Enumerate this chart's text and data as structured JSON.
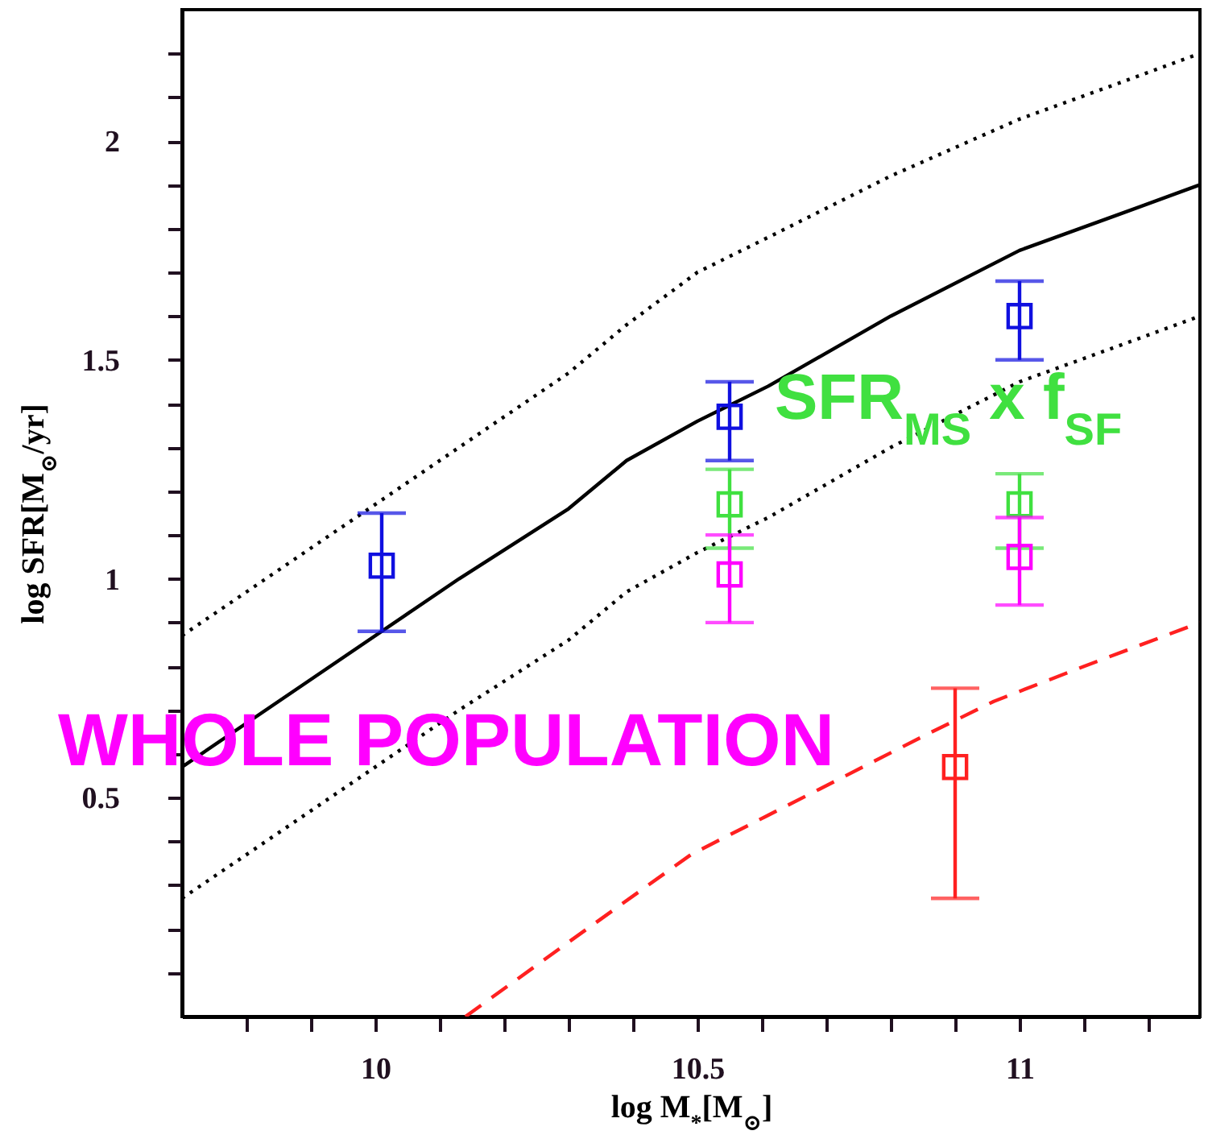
{
  "chart_data": {
    "type": "scatter",
    "xlabel": "log M$_{*}$[M$_{⊙}$]",
    "ylabel": "log SFR[M$_{⊙}$/yr]",
    "xlim": [
      9.7,
      11.28
    ],
    "ylim": [
      0,
      2.3
    ],
    "xticks": [
      {
        "value": 9.8,
        "label": null
      },
      {
        "value": 9.9,
        "label": null
      },
      10,
      {
        "value": 10.1,
        "label": null
      },
      {
        "value": 10.2,
        "label": null
      },
      {
        "value": 10.3,
        "label": null
      },
      {
        "value": 10.4,
        "label": null
      },
      10.5,
      {
        "value": 10.6,
        "label": null
      },
      {
        "value": 10.7,
        "label": null
      },
      {
        "value": 10.8,
        "label": null
      },
      {
        "value": 10.9,
        "label": null
      },
      11,
      {
        "value": 11.1,
        "label": null
      },
      {
        "value": 11.2,
        "label": null
      }
    ],
    "yticks": [
      {
        "value": 0.1,
        "label": null
      },
      {
        "value": 0.2,
        "label": null
      },
      {
        "value": 0.3,
        "label": null
      },
      {
        "value": 0.4,
        "label": null
      },
      0.5,
      {
        "value": 0.6,
        "label": null
      },
      {
        "value": 0.7,
        "label": null
      },
      {
        "value": 0.8,
        "label": null
      },
      {
        "value": 0.9,
        "label": null
      },
      1,
      {
        "value": 1.1,
        "label": null
      },
      {
        "value": 1.2,
        "label": null
      },
      {
        "value": 1.3,
        "label": null
      },
      {
        "value": 1.4,
        "label": null
      },
      1.5,
      {
        "value": 1.6,
        "label": null
      },
      {
        "value": 1.7,
        "label": null
      },
      {
        "value": 1.8,
        "label": null
      },
      {
        "value": 1.9,
        "label": null
      },
      2,
      {
        "value": 2.1,
        "label": null
      },
      {
        "value": 2.2,
        "label": null
      }
    ],
    "grid": false,
    "series": [
      {
        "type": "line",
        "color": "#000000",
        "line_style": "solid",
        "x": [
          9.7,
          9.9,
          10.13,
          10.3,
          10.39,
          10.5,
          10.61,
          10.8,
          11.0,
          11.15,
          11.28
        ],
        "values": [
          0.57,
          0.77,
          1.0,
          1.16,
          1.27,
          1.36,
          1.44,
          1.6,
          1.75,
          1.83,
          1.9
        ]
      },
      {
        "type": "line",
        "color": "#000000",
        "line_style": "dotted",
        "x": [
          9.7,
          9.9,
          10.13,
          10.3,
          10.39,
          10.5,
          10.61,
          10.8,
          11.0,
          11.15,
          11.28
        ],
        "values": [
          0.87,
          1.07,
          1.3,
          1.47,
          1.58,
          1.7,
          1.78,
          1.92,
          2.05,
          2.13,
          2.2
        ]
      },
      {
        "type": "line",
        "color": "#000000",
        "line_style": "dotted",
        "x": [
          9.7,
          9.9,
          10.13,
          10.3,
          10.39,
          10.5,
          10.61,
          10.8,
          11.0,
          11.15,
          11.28
        ],
        "values": [
          0.27,
          0.47,
          0.7,
          0.86,
          0.97,
          1.06,
          1.14,
          1.3,
          1.45,
          1.53,
          1.6
        ]
      },
      {
        "type": "line",
        "color": "#ff2020",
        "line_style": "dashed",
        "x": [
          10.14,
          10.3,
          10.49,
          10.61,
          10.73,
          10.85,
          10.96,
          11.1,
          11.28
        ],
        "values": [
          0.0,
          0.17,
          0.37,
          0.46,
          0.55,
          0.64,
          0.72,
          0.8,
          0.9
        ]
      },
      {
        "marker": "square",
        "color": "#1010e0",
        "x": [
          10.01,
          10.55,
          11.0
        ],
        "values": [
          1.03,
          1.37,
          1.6
        ],
        "errors": [
          [
            0.88,
            1.15
          ],
          [
            1.27,
            1.45
          ],
          [
            1.5,
            1.68
          ]
        ]
      },
      {
        "marker": "square",
        "name": "SFR$_{MS}$ x f$_{SF}$",
        "color": "#40e040",
        "x": [
          10.55,
          11.0
        ],
        "values": [
          1.17,
          1.17
        ],
        "errors": [
          [
            1.07,
            1.25
          ],
          [
            1.07,
            1.24
          ]
        ]
      },
      {
        "marker": "square",
        "name": "WHOLE POPULATION",
        "color": "#ff00ff",
        "x": [
          10.55,
          11.0
        ],
        "values": [
          1.01,
          1.05
        ],
        "errors": [
          [
            0.9,
            1.1
          ],
          [
            0.94,
            1.14
          ]
        ]
      },
      {
        "marker": "square",
        "color": "#ff2020",
        "x": [
          10.9
        ],
        "values": [
          0.57
        ],
        "errors": [
          [
            0.27,
            0.75
          ]
        ]
      }
    ]
  }
}
